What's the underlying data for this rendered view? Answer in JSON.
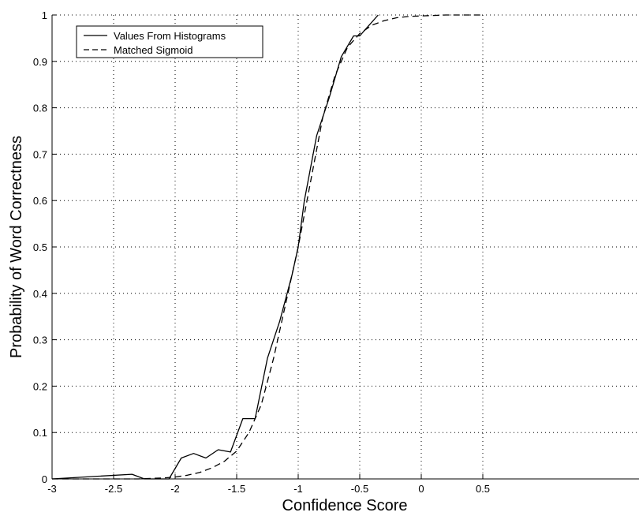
{
  "chart_data": {
    "type": "line",
    "xlabel": "Confidence Score",
    "ylabel": "Probability of Word Correctness",
    "xlim": [
      -3,
      0.5
    ],
    "ylim": [
      0,
      1
    ],
    "x_ticks": [
      -3,
      -2.5,
      -2,
      -1.5,
      -1,
      -0.5,
      0,
      0.5
    ],
    "y_ticks": [
      0,
      0.1,
      0.2,
      0.3,
      0.4,
      0.5,
      0.6,
      0.7,
      0.8,
      0.9,
      1
    ],
    "x_tick_labels": [
      "-3",
      "-2.5",
      "-2",
      "-1.5",
      "-1",
      "-0.5",
      "0",
      "0.5"
    ],
    "y_tick_labels": [
      "0",
      "0.1",
      "0.2",
      "0.3",
      "0.4",
      "0.5",
      "0.6",
      "0.7",
      "0.8",
      "0.9",
      "1"
    ],
    "grid": true,
    "legend_position": "top-left",
    "series": [
      {
        "name": "Values From Histograms",
        "style": "solid",
        "color": "#000000",
        "x": [
          -3.0,
          -2.35,
          -2.25,
          -2.05,
          -1.95,
          -1.85,
          -1.75,
          -1.65,
          -1.55,
          -1.45,
          -1.35,
          -1.25,
          -1.15,
          -1.05,
          -1.0,
          -0.95,
          -0.85,
          -0.75,
          -0.65,
          -0.55,
          -0.5,
          -0.45,
          -0.35
        ],
        "y": [
          0.0,
          0.01,
          0.0,
          0.0,
          0.045,
          0.055,
          0.045,
          0.063,
          0.058,
          0.13,
          0.13,
          0.26,
          0.34,
          0.44,
          0.5,
          0.6,
          0.74,
          0.82,
          0.91,
          0.955,
          0.955,
          0.97,
          1.0
        ]
      },
      {
        "name": "Matched Sigmoid",
        "style": "dashed",
        "color": "#000000",
        "x": [
          -3.0,
          -2.75,
          -2.5,
          -2.3,
          -2.1,
          -2.0,
          -1.9,
          -1.8,
          -1.7,
          -1.6,
          -1.5,
          -1.4,
          -1.3,
          -1.2,
          -1.1,
          -1.0,
          -0.9,
          -0.8,
          -0.7,
          -0.6,
          -0.5,
          -0.4,
          -0.3,
          -0.2,
          -0.1,
          0.0,
          0.1,
          0.2,
          0.3,
          0.4,
          0.5
        ],
        "y": [
          0.0,
          0.0,
          0.0,
          0.0,
          0.002,
          0.004,
          0.008,
          0.014,
          0.024,
          0.038,
          0.06,
          0.1,
          0.16,
          0.26,
          0.38,
          0.5,
          0.64,
          0.78,
          0.87,
          0.93,
          0.96,
          0.978,
          0.988,
          0.994,
          0.997,
          0.998,
          0.999,
          1.0,
          1.0,
          1.0,
          1.0
        ]
      }
    ]
  }
}
